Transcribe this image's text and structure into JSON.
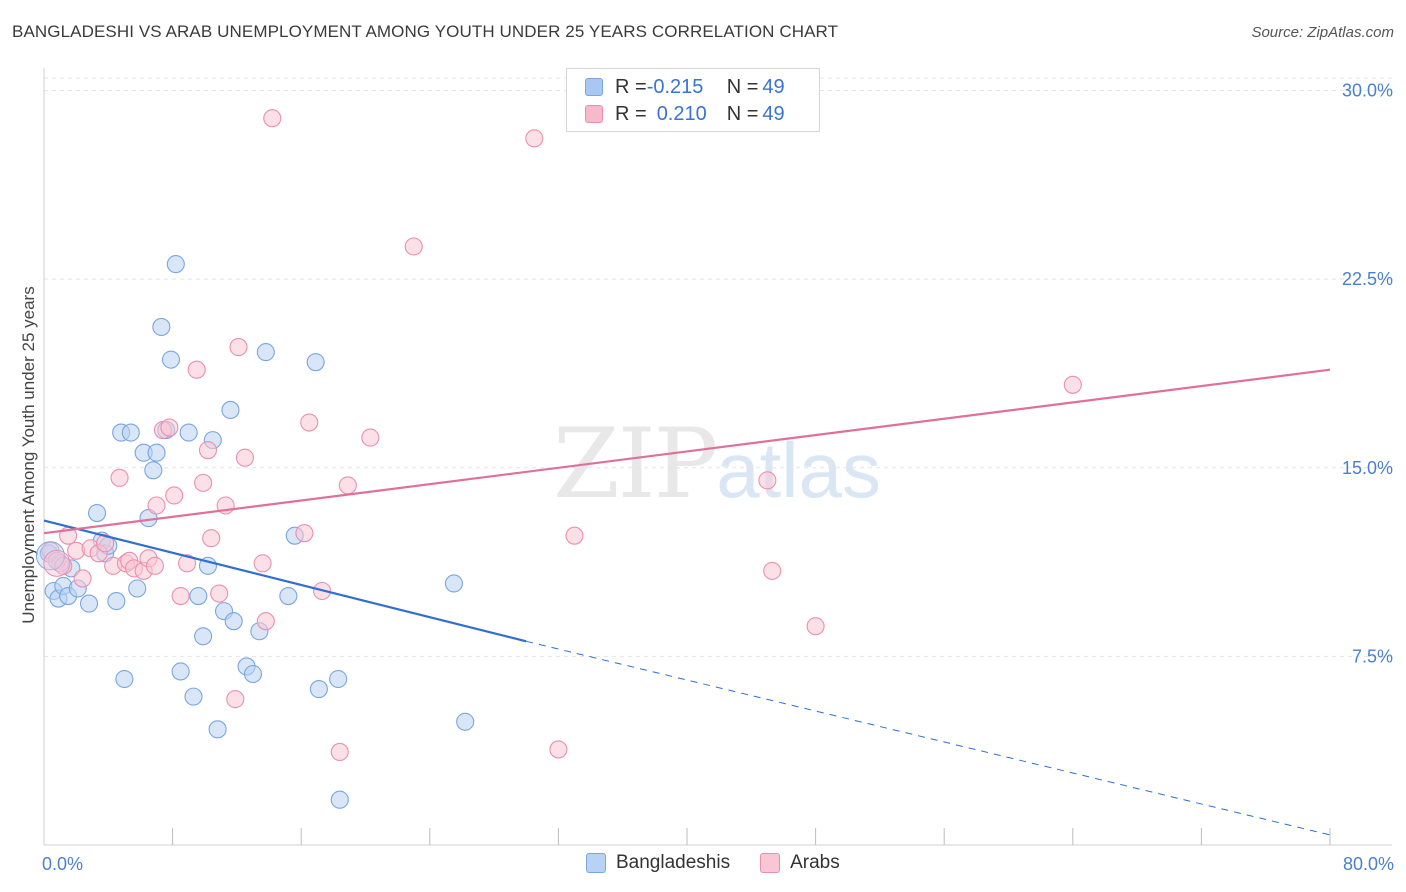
{
  "title": "BANGLADESHI VS ARAB UNEMPLOYMENT AMONG YOUTH UNDER 25 YEARS CORRELATION CHART",
  "source": "Source: ZipAtlas.com",
  "watermark": {
    "zip": "ZIP",
    "atlas": "atlas"
  },
  "legend_top": {
    "rows": [
      {
        "r_label": "R = ",
        "r_value": "-0.215",
        "n_label": "N = ",
        "n_value": "49",
        "color": "#a9c7f0",
        "border": "#7aa6e0"
      },
      {
        "r_label": "R = ",
        "r_value": "0.210",
        "n_label": "N = ",
        "n_value": "49",
        "color": "#f7b9cc",
        "border": "#ec8fae"
      }
    ]
  },
  "legend_bottom": [
    {
      "label": "Bangladeshis",
      "color": "#b8d2f3",
      "border": "#7aa6e0"
    },
    {
      "label": "Arabs",
      "color": "#f9c6d6",
      "border": "#ec8fae"
    }
  ],
  "chart_data": {
    "type": "scatter",
    "title": "BANGLADESHI VS ARAB UNEMPLOYMENT AMONG YOUTH UNDER 25 YEARS CORRELATION CHART",
    "xlabel": "",
    "ylabel": "Unemployment Among Youth under 25 years",
    "xlim": [
      0,
      80
    ],
    "ylim": [
      0,
      30.5
    ],
    "x_tick_labels": [
      "0.0%",
      "80.0%"
    ],
    "y_ticks": [
      7.5,
      15.0,
      22.5,
      30.0
    ],
    "y_tick_labels": [
      "7.5%",
      "15.0%",
      "22.5%",
      "30.0%"
    ],
    "grid": true,
    "series": [
      {
        "name": "Bangladeshis",
        "color": "#7aa6e0",
        "fill": "#b8d2f3",
        "trend": {
          "x0": 0,
          "y0": 12.9,
          "x1": 30,
          "y1": 8.1,
          "dash_to_x": 80,
          "dash_to_y": 0.4,
          "color": "#2e6fd0"
        },
        "points": [
          [
            0.3,
            11.6
          ],
          [
            0.6,
            10.1
          ],
          [
            0.9,
            9.8
          ],
          [
            1.2,
            10.3
          ],
          [
            1.5,
            9.9
          ],
          [
            1.7,
            11.0
          ],
          [
            2.1,
            10.2
          ],
          [
            2.8,
            9.6
          ],
          [
            3.3,
            13.2
          ],
          [
            3.6,
            12.1
          ],
          [
            3.8,
            11.6
          ],
          [
            4.5,
            9.7
          ],
          [
            4.8,
            16.4
          ],
          [
            5.0,
            6.6
          ],
          [
            5.4,
            16.4
          ],
          [
            5.8,
            10.2
          ],
          [
            6.2,
            15.6
          ],
          [
            6.5,
            13.0
          ],
          [
            6.8,
            14.9
          ],
          [
            7.0,
            15.6
          ],
          [
            7.3,
            20.6
          ],
          [
            7.6,
            16.5
          ],
          [
            7.9,
            19.3
          ],
          [
            8.2,
            23.1
          ],
          [
            8.5,
            6.9
          ],
          [
            9.0,
            16.4
          ],
          [
            9.3,
            5.9
          ],
          [
            9.6,
            9.9
          ],
          [
            9.9,
            8.3
          ],
          [
            10.2,
            11.1
          ],
          [
            10.5,
            16.1
          ],
          [
            10.8,
            4.6
          ],
          [
            11.2,
            9.3
          ],
          [
            11.6,
            17.3
          ],
          [
            11.8,
            8.9
          ],
          [
            12.6,
            7.1
          ],
          [
            13.0,
            6.8
          ],
          [
            13.4,
            8.5
          ],
          [
            13.8,
            19.6
          ],
          [
            15.2,
            9.9
          ],
          [
            15.6,
            12.3
          ],
          [
            16.9,
            19.2
          ],
          [
            17.1,
            6.2
          ],
          [
            18.3,
            6.6
          ],
          [
            18.4,
            1.8
          ],
          [
            25.5,
            10.4
          ],
          [
            26.2,
            4.9
          ],
          [
            4.0,
            11.9
          ],
          [
            1.0,
            11.2
          ]
        ]
      },
      {
        "name": "Arabs",
        "color": "#ec8fae",
        "fill": "#f9c6d6",
        "trend": {
          "x0": 0,
          "y0": 12.4,
          "x1": 80,
          "y1": 18.9,
          "color": "#e0709a"
        },
        "points": [
          [
            0.4,
            11.7
          ],
          [
            0.8,
            11.3
          ],
          [
            1.2,
            11.1
          ],
          [
            1.5,
            12.3
          ],
          [
            2.0,
            11.7
          ],
          [
            2.4,
            10.6
          ],
          [
            2.9,
            11.8
          ],
          [
            3.4,
            11.6
          ],
          [
            3.8,
            12.0
          ],
          [
            4.3,
            11.1
          ],
          [
            4.7,
            14.6
          ],
          [
            5.1,
            11.2
          ],
          [
            5.3,
            11.3
          ],
          [
            5.6,
            11.0
          ],
          [
            6.2,
            10.9
          ],
          [
            6.5,
            11.4
          ],
          [
            6.9,
            11.1
          ],
          [
            7.0,
            13.5
          ],
          [
            7.4,
            16.5
          ],
          [
            7.8,
            16.6
          ],
          [
            8.1,
            13.9
          ],
          [
            8.5,
            9.9
          ],
          [
            8.9,
            11.2
          ],
          [
            9.5,
            18.9
          ],
          [
            9.9,
            14.4
          ],
          [
            10.2,
            15.7
          ],
          [
            10.4,
            12.2
          ],
          [
            10.9,
            10.0
          ],
          [
            11.3,
            13.5
          ],
          [
            11.9,
            5.8
          ],
          [
            12.1,
            19.8
          ],
          [
            12.5,
            15.4
          ],
          [
            13.6,
            11.2
          ],
          [
            13.8,
            8.9
          ],
          [
            14.2,
            28.9
          ],
          [
            16.2,
            12.4
          ],
          [
            16.5,
            16.8
          ],
          [
            17.3,
            10.1
          ],
          [
            18.4,
            3.7
          ],
          [
            18.9,
            14.3
          ],
          [
            20.3,
            16.2
          ],
          [
            23.0,
            23.8
          ],
          [
            30.5,
            28.1
          ],
          [
            32.0,
            3.8
          ],
          [
            33.0,
            12.3
          ],
          [
            45.3,
            10.9
          ],
          [
            48.0,
            8.7
          ],
          [
            45.0,
            14.5
          ],
          [
            64.0,
            18.3
          ]
        ]
      }
    ]
  }
}
